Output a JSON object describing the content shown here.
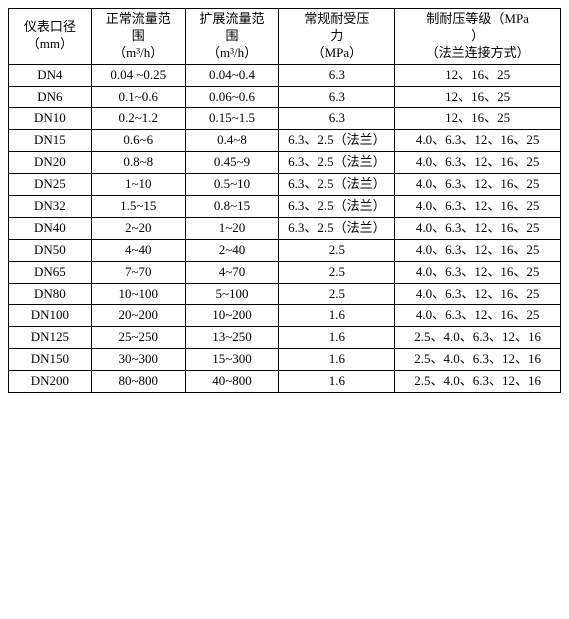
{
  "table": {
    "columns": [
      {
        "line1": "仪表口径",
        "line2": "（mm）",
        "line3": ""
      },
      {
        "line1": "正常流量范",
        "line2": "围",
        "line3": "（m³/h）"
      },
      {
        "line1": "扩展流量范",
        "line2": "围",
        "line3": "（m³/h）"
      },
      {
        "line1": "常规耐受压",
        "line2": "力",
        "line3": "（MPa）"
      },
      {
        "line1": "制耐压等级（MPa",
        "line2": "）",
        "line3": "（法兰连接方式）"
      }
    ],
    "rows": [
      {
        "c0": "DN4",
        "c1": "0.04 ~0.25",
        "c2": "0.04~0.4",
        "c3": "6.3",
        "c4": "12、16、25"
      },
      {
        "c0": "DN6",
        "c1": "0.1~0.6",
        "c2": "0.06~0.6",
        "c3": "6.3",
        "c4": "12、16、25"
      },
      {
        "c0": "DN10",
        "c1": "0.2~1.2",
        "c2": "0.15~1.5",
        "c3": "6.3",
        "c4": "12、16、25"
      },
      {
        "c0": "DN15",
        "c1": "0.6~6",
        "c2": "0.4~8",
        "c3": "6.3、2.5（法兰）",
        "c4": "4.0、6.3、12、16、25"
      },
      {
        "c0": "DN20",
        "c1": "0.8~8",
        "c2": "0.45~9",
        "c3": "6.3、2.5（法兰）",
        "c4": "4.0、6.3、12、16、25"
      },
      {
        "c0": "DN25",
        "c1": "1~10",
        "c2": "0.5~10",
        "c3": "6.3、2.5（法兰）",
        "c4": "4.0、6.3、12、16、25"
      },
      {
        "c0": "DN32",
        "c1": "1.5~15",
        "c2": "0.8~15",
        "c3": "6.3、2.5（法兰）",
        "c4": "4.0、6.3、12、16、25"
      },
      {
        "c0": "DN40",
        "c1": "2~20",
        "c2": "1~20",
        "c3": "6.3、2.5（法兰）",
        "c4": "4.0、6.3、12、16、25"
      },
      {
        "c0": "DN50",
        "c1": "4~40",
        "c2": "2~40",
        "c3": "2.5",
        "c4": "4.0、6.3、12、16、25"
      },
      {
        "c0": "DN65",
        "c1": "7~70",
        "c2": "4~70",
        "c3": "2.5",
        "c4": "4.0、6.3、12、16、25"
      },
      {
        "c0": "DN80",
        "c1": "10~100",
        "c2": "5~100",
        "c3": "2.5",
        "c4": "4.0、6.3、12、16、25"
      },
      {
        "c0": "DN100",
        "c1": "20~200",
        "c2": "10~200",
        "c3": "1.6",
        "c4": "4.0、6.3、12、16、25"
      },
      {
        "c0": "DN125",
        "c1": "25~250",
        "c2": "13~250",
        "c3": "1.6",
        "c4": "2.5、4.0、6.3、12、16"
      },
      {
        "c0": "DN150",
        "c1": "30~300",
        "c2": "15~300",
        "c3": "1.6",
        "c4": "2.5、4.0、6.3、12、16"
      },
      {
        "c0": "DN200",
        "c1": "80~800",
        "c2": "40~800",
        "c3": "1.6",
        "c4": "2.5、4.0、6.3、12、16"
      }
    ],
    "colors": {
      "border": "#000000",
      "background": "#ffffff",
      "text": "#000000"
    },
    "fontsize": 13
  }
}
